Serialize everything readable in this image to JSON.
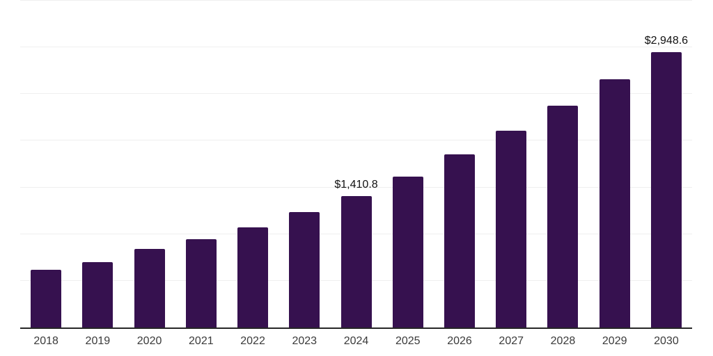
{
  "chart_data": {
    "type": "bar",
    "title": "",
    "xlabel": "",
    "ylabel": "",
    "categories": [
      "2018",
      "2019",
      "2020",
      "2021",
      "2022",
      "2023",
      "2024",
      "2025",
      "2026",
      "2027",
      "2028",
      "2029",
      "2030"
    ],
    "values": [
      620.5,
      697.3,
      845.3,
      944.6,
      1071.5,
      1235.8,
      1410.8,
      1616.6,
      1855.6,
      2109.4,
      2373.0,
      2662.0,
      2948.6
    ],
    "data_labels": [
      "",
      "",
      "",
      "",
      "",
      "",
      "$1,410.8",
      "",
      "",
      "",
      "",
      "",
      "$2,948.6"
    ],
    "ylim": [
      0,
      3500
    ],
    "gridline_step": 500,
    "grid": true,
    "legend_position": "none",
    "colors": {
      "bar": "#36114f",
      "gridline": "#efefef",
      "axis_line": "#262626",
      "tick_label": "#3a3a3a",
      "data_label": "#111111",
      "background": "#ffffff"
    }
  }
}
